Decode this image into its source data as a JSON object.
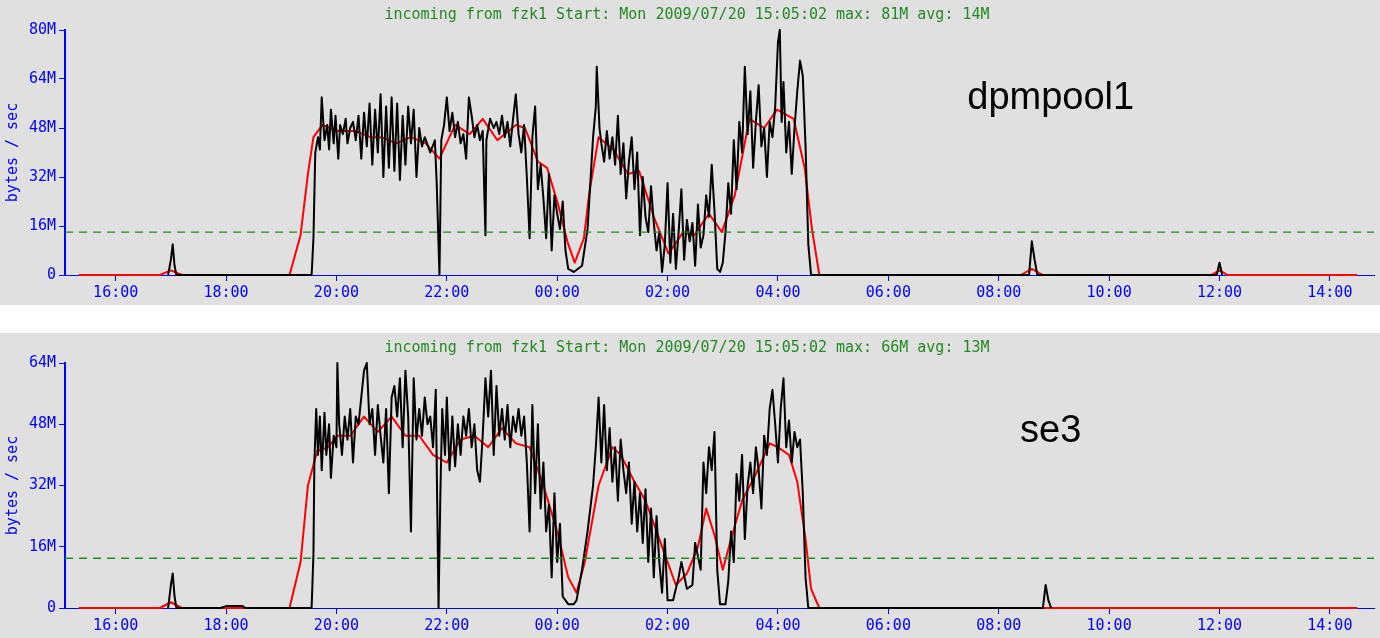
{
  "chart_data": [
    {
      "type": "line",
      "title": "incoming from fzk1 Start: Mon 2009/07/20 15:05:02 max: 81M avg: 14M",
      "ylabel": "bytes / sec",
      "annotations": [
        "dpmpool1"
      ],
      "xlim": [
        "2009-07-20T15:05",
        "2009-07-21T14:48"
      ],
      "xticks": [
        {
          "value": "2009-07-20T16:00",
          "label": "16:00"
        },
        {
          "value": "2009-07-20T18:00",
          "label": "18:00"
        },
        {
          "value": "2009-07-20T20:00",
          "label": "20:00"
        },
        {
          "value": "2009-07-20T22:00",
          "label": "22:00"
        },
        {
          "value": "2009-07-21T00:00",
          "label": "00:00"
        },
        {
          "value": "2009-07-21T02:00",
          "label": "02:00"
        },
        {
          "value": "2009-07-21T04:00",
          "label": "04:00"
        },
        {
          "value": "2009-07-21T06:00",
          "label": "06:00"
        },
        {
          "value": "2009-07-21T08:00",
          "label": "08:00"
        },
        {
          "value": "2009-07-21T10:00",
          "label": "10:00"
        },
        {
          "value": "2009-07-21T12:00",
          "label": "12:00"
        },
        {
          "value": "2009-07-21T14:00",
          "label": "14:00"
        }
      ],
      "ylim": [
        0,
        80
      ],
      "yticks": [
        0,
        {
          "value": 16,
          "label": "16M"
        },
        {
          "value": 32,
          "label": "32M"
        },
        {
          "value": 48,
          "label": "48M"
        },
        {
          "value": 64,
          "label": "64M"
        },
        {
          "value": 80,
          "label": "80M"
        }
      ],
      "grid": false,
      "legend": false,
      "marker": "none",
      "ref_lines": [
        {
          "axis": "y",
          "value": 14,
          "color": "#228b22",
          "line_style": "dashed"
        }
      ],
      "series": [
        {
          "color": "#000000",
          "x": [
            "2009-07-20T16:57",
            "2009-07-20T17:00",
            "2009-07-20T17:02",
            "2009-07-20T17:04",
            "2009-07-20T17:06",
            "2009-07-20T19:33",
            "2009-07-20T19:35",
            "2009-07-20T19:37",
            "2009-07-20T19:40",
            "2009-07-20T19:42",
            "2009-07-20T19:44",
            "2009-07-20T19:47",
            "2009-07-20T19:50",
            "2009-07-20T19:52",
            "2009-07-20T19:54",
            "2009-07-20T19:57",
            "2009-07-20T19:59",
            "2009-07-20T20:02",
            "2009-07-20T20:04",
            "2009-07-20T20:07",
            "2009-07-20T20:10",
            "2009-07-20T20:12",
            "2009-07-20T20:15",
            "2009-07-20T20:18",
            "2009-07-20T20:21",
            "2009-07-20T20:24",
            "2009-07-20T20:27",
            "2009-07-20T20:30",
            "2009-07-20T20:33",
            "2009-07-20T20:36",
            "2009-07-20T20:39",
            "2009-07-20T20:42",
            "2009-07-20T20:45",
            "2009-07-20T20:48",
            "2009-07-20T20:51",
            "2009-07-20T20:54",
            "2009-07-20T20:57",
            "2009-07-20T21:00",
            "2009-07-20T21:03",
            "2009-07-20T21:06",
            "2009-07-20T21:09",
            "2009-07-20T21:12",
            "2009-07-20T21:15",
            "2009-07-20T21:18",
            "2009-07-20T21:21",
            "2009-07-20T21:24",
            "2009-07-20T21:27",
            "2009-07-20T21:30",
            "2009-07-20T21:33",
            "2009-07-20T21:36",
            "2009-07-20T21:42",
            "2009-07-20T21:47",
            "2009-07-20T21:49",
            "2009-07-20T21:52",
            "2009-07-20T21:54",
            "2009-07-20T21:57",
            "2009-07-20T22:00",
            "2009-07-20T22:03",
            "2009-07-20T22:06",
            "2009-07-20T22:09",
            "2009-07-20T22:12",
            "2009-07-20T22:15",
            "2009-07-20T22:18",
            "2009-07-20T22:21",
            "2009-07-20T22:24",
            "2009-07-20T22:27",
            "2009-07-20T22:30",
            "2009-07-20T22:33",
            "2009-07-20T22:36",
            "2009-07-20T22:39",
            "2009-07-20T22:42",
            "2009-07-20T22:43",
            "2009-07-20T22:47",
            "2009-07-20T22:51",
            "2009-07-20T22:54",
            "2009-07-20T22:57",
            "2009-07-20T23:00",
            "2009-07-20T23:03",
            "2009-07-20T23:06",
            "2009-07-20T23:09",
            "2009-07-20T23:12",
            "2009-07-20T23:15",
            "2009-07-20T23:18",
            "2009-07-20T23:21",
            "2009-07-20T23:24",
            "2009-07-20T23:27",
            "2009-07-20T23:30",
            "2009-07-20T23:33",
            "2009-07-20T23:36",
            "2009-07-20T23:39",
            "2009-07-20T23:42",
            "2009-07-20T23:45",
            "2009-07-20T23:48",
            "2009-07-20T23:51",
            "2009-07-20T23:54",
            "2009-07-20T23:57",
            "2009-07-21T00:00",
            "2009-07-21T00:03",
            "2009-07-21T00:06",
            "2009-07-21T00:09",
            "2009-07-21T00:12",
            "2009-07-21T00:18",
            "2009-07-21T00:27",
            "2009-07-21T00:33",
            "2009-07-21T00:36",
            "2009-07-21T00:39",
            "2009-07-21T00:42",
            "2009-07-21T00:43",
            "2009-07-21T00:46",
            "2009-07-21T00:48",
            "2009-07-21T00:51",
            "2009-07-21T00:54",
            "2009-07-21T00:57",
            "2009-07-21T01:00",
            "2009-07-21T01:03",
            "2009-07-21T01:06",
            "2009-07-21T01:09",
            "2009-07-21T01:12",
            "2009-07-21T01:15",
            "2009-07-21T01:18",
            "2009-07-21T01:21",
            "2009-07-21T01:24",
            "2009-07-21T01:27",
            "2009-07-21T01:30",
            "2009-07-21T01:33",
            "2009-07-21T01:36",
            "2009-07-21T01:39",
            "2009-07-21T01:42",
            "2009-07-21T01:45",
            "2009-07-21T01:48",
            "2009-07-21T01:51",
            "2009-07-21T01:54",
            "2009-07-21T01:57",
            "2009-07-21T02:00",
            "2009-07-21T02:03",
            "2009-07-21T02:06",
            "2009-07-21T02:09",
            "2009-07-21T02:12",
            "2009-07-21T02:15",
            "2009-07-21T02:18",
            "2009-07-21T02:21",
            "2009-07-21T02:24",
            "2009-07-21T02:27",
            "2009-07-21T02:30",
            "2009-07-21T02:33",
            "2009-07-21T02:36",
            "2009-07-21T02:39",
            "2009-07-21T02:42",
            "2009-07-21T02:45",
            "2009-07-21T02:48",
            "2009-07-21T02:51",
            "2009-07-21T02:54",
            "2009-07-21T02:57",
            "2009-07-21T03:00",
            "2009-07-21T03:03",
            "2009-07-21T03:06",
            "2009-07-21T03:09",
            "2009-07-21T03:12",
            "2009-07-21T03:15",
            "2009-07-21T03:18",
            "2009-07-21T03:21",
            "2009-07-21T03:24",
            "2009-07-21T03:27",
            "2009-07-21T03:30",
            "2009-07-21T03:33",
            "2009-07-21T03:36",
            "2009-07-21T03:39",
            "2009-07-21T03:42",
            "2009-07-21T03:45",
            "2009-07-21T03:48",
            "2009-07-21T03:51",
            "2009-07-21T03:54",
            "2009-07-21T03:57",
            "2009-07-21T04:00",
            "2009-07-21T04:02",
            "2009-07-21T04:04",
            "2009-07-21T04:06",
            "2009-07-21T04:09",
            "2009-07-21T04:12",
            "2009-07-21T04:15",
            "2009-07-21T04:18",
            "2009-07-21T04:21",
            "2009-07-21T04:24",
            "2009-07-21T04:27",
            "2009-07-21T04:30",
            "2009-07-21T04:33",
            "2009-07-21T04:36",
            "2009-07-21T08:33",
            "2009-07-21T08:36",
            "2009-07-21T08:39",
            "2009-07-21T08:42",
            "2009-07-21T11:57",
            "2009-07-21T12:00",
            "2009-07-21T12:03"
          ],
          "values": [
            0,
            5,
            10,
            3,
            0,
            0,
            12,
            40,
            45,
            41,
            58,
            44,
            49,
            41,
            54,
            43,
            52,
            38,
            49,
            46,
            51,
            43,
            48,
            50,
            44,
            52,
            38,
            53,
            42,
            56,
            36,
            54,
            40,
            59,
            32,
            55,
            35,
            58,
            34,
            56,
            31,
            52,
            36,
            55,
            43,
            54,
            32,
            48,
            42,
            45,
            40,
            44,
            30,
            0,
            44,
            49,
            58,
            47,
            53,
            45,
            50,
            43,
            46,
            38,
            58,
            52,
            45,
            49,
            44,
            47,
            13,
            44,
            51,
            48,
            50,
            46,
            52,
            45,
            50,
            42,
            51,
            59,
            46,
            40,
            49,
            32,
            12,
            45,
            55,
            28,
            36,
            25,
            12,
            33,
            8,
            26,
            20,
            15,
            24,
            8,
            2,
            1,
            3,
            15,
            30,
            45,
            55,
            68,
            48,
            43,
            37,
            47,
            38,
            45,
            36,
            52,
            33,
            43,
            25,
            37,
            45,
            28,
            40,
            13,
            32,
            19,
            14,
            29,
            17,
            8,
            14,
            1,
            10,
            30,
            4,
            20,
            2,
            14,
            28,
            5,
            18,
            11,
            17,
            3,
            23,
            9,
            13,
            26,
            19,
            36,
            21,
            2,
            1,
            4,
            14,
            30,
            20,
            44,
            28,
            50,
            40,
            68,
            46,
            60,
            35,
            50,
            62,
            42,
            48,
            32,
            50,
            45,
            55,
            76,
            80,
            50,
            63,
            40,
            50,
            33,
            48,
            60,
            70,
            65,
            42,
            10,
            0,
            0,
            11,
            5,
            0,
            0,
            4,
            0
          ]
        },
        {
          "color": "#ff0000",
          "x": [
            "2009-07-20T15:20",
            "2009-07-20T16:48",
            "2009-07-20T17:00",
            "2009-07-20T17:12",
            "2009-07-20T19:09",
            "2009-07-20T19:21",
            "2009-07-20T19:29",
            "2009-07-20T19:35",
            "2009-07-20T19:45",
            "2009-07-20T20:01",
            "2009-07-20T20:21",
            "2009-07-20T20:37",
            "2009-07-20T20:49",
            "2009-07-20T21:05",
            "2009-07-20T21:21",
            "2009-07-20T21:37",
            "2009-07-20T21:52",
            "2009-07-20T22:09",
            "2009-07-20T22:25",
            "2009-07-20T22:39",
            "2009-07-20T22:55",
            "2009-07-20T23:15",
            "2009-07-20T23:25",
            "2009-07-20T23:39",
            "2009-07-20T23:49",
            "2009-07-21T00:01",
            "2009-07-21T00:11",
            "2009-07-21T00:19",
            "2009-07-21T00:29",
            "2009-07-21T00:35",
            "2009-07-21T00:45",
            "2009-07-21T01:01",
            "2009-07-21T01:17",
            "2009-07-21T01:29",
            "2009-07-21T01:45",
            "2009-07-21T02:01",
            "2009-07-21T02:17",
            "2009-07-21T02:29",
            "2009-07-21T02:45",
            "2009-07-21T02:59",
            "2009-07-21T03:13",
            "2009-07-21T03:29",
            "2009-07-21T03:45",
            "2009-07-21T03:59",
            "2009-07-21T04:17",
            "2009-07-21T04:29",
            "2009-07-21T04:37",
            "2009-07-21T04:45",
            "2009-07-21T08:24",
            "2009-07-21T08:36",
            "2009-07-21T08:48",
            "2009-07-21T11:51",
            "2009-07-21T12:00",
            "2009-07-21T12:09",
            "2009-07-21T14:30"
          ],
          "values": [
            0,
            0,
            1.5,
            0,
            0,
            13,
            33,
            45,
            49,
            47,
            47,
            45,
            45,
            43,
            45,
            43,
            38,
            49,
            46,
            51,
            44,
            49,
            48,
            37,
            35,
            23,
            11,
            4,
            12,
            27,
            45,
            41,
            33,
            34,
            19,
            7,
            14,
            13,
            20,
            14,
            26,
            51,
            48,
            54,
            51,
            35,
            15,
            0,
            0,
            2,
            0,
            0,
            1.5,
            0,
            0
          ]
        }
      ]
    },
    {
      "type": "line",
      "title": "incoming from fzk1 Start: Mon 2009/07/20 15:05:02 max: 66M avg: 13M",
      "ylabel": "bytes / sec",
      "annotations": [
        "se3"
      ],
      "xlim": [
        "2009-07-20T15:05",
        "2009-07-21T14:48"
      ],
      "xticks": [
        {
          "value": "2009-07-20T16:00",
          "label": "16:00"
        },
        {
          "value": "2009-07-20T18:00",
          "label": "18:00"
        },
        {
          "value": "2009-07-20T20:00",
          "label": "20:00"
        },
        {
          "value": "2009-07-20T22:00",
          "label": "22:00"
        },
        {
          "value": "2009-07-21T00:00",
          "label": "00:00"
        },
        {
          "value": "2009-07-21T02:00",
          "label": "02:00"
        },
        {
          "value": "2009-07-21T04:00",
          "label": "04:00"
        },
        {
          "value": "2009-07-21T06:00",
          "label": "06:00"
        },
        {
          "value": "2009-07-21T08:00",
          "label": "08:00"
        },
        {
          "value": "2009-07-21T10:00",
          "label": "10:00"
        },
        {
          "value": "2009-07-21T12:00",
          "label": "12:00"
        },
        {
          "value": "2009-07-21T14:00",
          "label": "14:00"
        }
      ],
      "ylim": [
        0,
        64
      ],
      "yticks": [
        0,
        {
          "value": 16,
          "label": "16M"
        },
        {
          "value": 32,
          "label": "32M"
        },
        {
          "value": 48,
          "label": "48M"
        },
        {
          "value": 64,
          "label": "64M"
        }
      ],
      "grid": false,
      "legend": false,
      "marker": "none",
      "ref_lines": [
        {
          "axis": "y",
          "value": 13,
          "color": "#228b22",
          "line_style": "dashed"
        }
      ],
      "series": [
        {
          "color": "#000000",
          "x": [
            "2009-07-20T16:57",
            "2009-07-20T17:00",
            "2009-07-20T17:02",
            "2009-07-20T17:04",
            "2009-07-20T17:06",
            "2009-07-20T17:54",
            "2009-07-20T18:00",
            "2009-07-20T18:18",
            "2009-07-20T18:21",
            "2009-07-20T19:33",
            "2009-07-20T19:35",
            "2009-07-20T19:36",
            "2009-07-20T19:38",
            "2009-07-20T19:40",
            "2009-07-20T19:42",
            "2009-07-20T19:44",
            "2009-07-20T19:47",
            "2009-07-20T19:49",
            "2009-07-20T19:52",
            "2009-07-20T19:54",
            "2009-07-20T19:57",
            "2009-07-20T20:00",
            "2009-07-20T20:01",
            "2009-07-20T20:03",
            "2009-07-20T20:06",
            "2009-07-20T20:09",
            "2009-07-20T20:12",
            "2009-07-20T20:15",
            "2009-07-20T20:18",
            "2009-07-20T20:21",
            "2009-07-20T20:24",
            "2009-07-20T20:27",
            "2009-07-20T20:30",
            "2009-07-20T20:33",
            "2009-07-20T20:36",
            "2009-07-20T20:39",
            "2009-07-20T20:42",
            "2009-07-20T20:45",
            "2009-07-20T20:48",
            "2009-07-20T20:51",
            "2009-07-20T20:54",
            "2009-07-20T20:57",
            "2009-07-20T21:00",
            "2009-07-20T21:03",
            "2009-07-20T21:06",
            "2009-07-20T21:09",
            "2009-07-20T21:12",
            "2009-07-20T21:15",
            "2009-07-20T21:18",
            "2009-07-20T21:21",
            "2009-07-20T21:24",
            "2009-07-20T21:27",
            "2009-07-20T21:30",
            "2009-07-20T21:33",
            "2009-07-20T21:36",
            "2009-07-20T21:39",
            "2009-07-20T21:42",
            "2009-07-20T21:45",
            "2009-07-20T21:48",
            "2009-07-20T21:51",
            "2009-07-20T21:53",
            "2009-07-20T21:55",
            "2009-07-20T21:58",
            "2009-07-20T22:00",
            "2009-07-20T22:03",
            "2009-07-20T22:06",
            "2009-07-20T22:09",
            "2009-07-20T22:12",
            "2009-07-20T22:15",
            "2009-07-20T22:18",
            "2009-07-20T22:21",
            "2009-07-20T22:24",
            "2009-07-20T22:27",
            "2009-07-20T22:30",
            "2009-07-20T22:33",
            "2009-07-20T22:36",
            "2009-07-20T22:39",
            "2009-07-20T22:42",
            "2009-07-20T22:45",
            "2009-07-20T22:48",
            "2009-07-20T22:51",
            "2009-07-20T22:54",
            "2009-07-20T22:57",
            "2009-07-20T23:00",
            "2009-07-20T23:03",
            "2009-07-20T23:06",
            "2009-07-20T23:09",
            "2009-07-20T23:12",
            "2009-07-20T23:15",
            "2009-07-20T23:18",
            "2009-07-20T23:21",
            "2009-07-20T23:24",
            "2009-07-20T23:27",
            "2009-07-20T23:30",
            "2009-07-20T23:33",
            "2009-07-20T23:36",
            "2009-07-20T23:39",
            "2009-07-20T23:42",
            "2009-07-20T23:45",
            "2009-07-20T23:48",
            "2009-07-20T23:51",
            "2009-07-20T23:54",
            "2009-07-20T23:57",
            "2009-07-21T00:00",
            "2009-07-21T00:03",
            "2009-07-21T00:06",
            "2009-07-21T00:12",
            "2009-07-21T00:18",
            "2009-07-21T00:21",
            "2009-07-21T00:27",
            "2009-07-21T00:33",
            "2009-07-21T00:39",
            "2009-07-21T00:42",
            "2009-07-21T00:45",
            "2009-07-21T00:48",
            "2009-07-21T00:51",
            "2009-07-21T00:54",
            "2009-07-21T00:57",
            "2009-07-21T01:00",
            "2009-07-21T01:03",
            "2009-07-21T01:06",
            "2009-07-21T01:09",
            "2009-07-21T01:12",
            "2009-07-21T01:15",
            "2009-07-21T01:18",
            "2009-07-21T01:21",
            "2009-07-21T01:24",
            "2009-07-21T01:27",
            "2009-07-21T01:30",
            "2009-07-21T01:33",
            "2009-07-21T01:36",
            "2009-07-21T01:39",
            "2009-07-21T01:42",
            "2009-07-21T01:45",
            "2009-07-21T01:48",
            "2009-07-21T01:51",
            "2009-07-21T01:54",
            "2009-07-21T01:57",
            "2009-07-21T02:00",
            "2009-07-21T02:06",
            "2009-07-21T02:12",
            "2009-07-21T02:15",
            "2009-07-21T02:21",
            "2009-07-21T02:27",
            "2009-07-21T02:30",
            "2009-07-21T02:36",
            "2009-07-21T02:39",
            "2009-07-21T02:42",
            "2009-07-21T02:45",
            "2009-07-21T02:48",
            "2009-07-21T02:51",
            "2009-07-21T02:54",
            "2009-07-21T02:57",
            "2009-07-21T03:03",
            "2009-07-21T03:06",
            "2009-07-21T03:09",
            "2009-07-21T03:12",
            "2009-07-21T03:15",
            "2009-07-21T03:18",
            "2009-07-21T03:21",
            "2009-07-21T03:24",
            "2009-07-21T03:27",
            "2009-07-21T03:30",
            "2009-07-21T03:33",
            "2009-07-21T03:36",
            "2009-07-21T03:39",
            "2009-07-21T03:42",
            "2009-07-21T03:45",
            "2009-07-21T03:48",
            "2009-07-21T03:51",
            "2009-07-21T03:54",
            "2009-07-21T03:57",
            "2009-07-21T04:00",
            "2009-07-21T04:03",
            "2009-07-21T04:06",
            "2009-07-21T04:09",
            "2009-07-21T04:12",
            "2009-07-21T04:15",
            "2009-07-21T04:18",
            "2009-07-21T04:21",
            "2009-07-21T04:24",
            "2009-07-21T04:27",
            "2009-07-21T04:30",
            "2009-07-21T04:33",
            "2009-07-21T08:48",
            "2009-07-21T08:51",
            "2009-07-21T08:54",
            "2009-07-21T08:57"
          ],
          "values": [
            0,
            6,
            9,
            3,
            0,
            0,
            0.5,
            0.5,
            0,
            0,
            14,
            38,
            52,
            40,
            50,
            36,
            51,
            40,
            48,
            34,
            45,
            42,
            64,
            48,
            40,
            50,
            44,
            52,
            38,
            50,
            48,
            55,
            62,
            64,
            48,
            52,
            40,
            53,
            45,
            38,
            52,
            30,
            55,
            58,
            50,
            60,
            42,
            62,
            50,
            20,
            60,
            44,
            52,
            45,
            55,
            48,
            50,
            42,
            57,
            0,
            30,
            52,
            40,
            55,
            36,
            50,
            37,
            48,
            40,
            50,
            45,
            52,
            42,
            48,
            36,
            33,
            45,
            60,
            50,
            62,
            40,
            58,
            45,
            52,
            44,
            53,
            42,
            50,
            46,
            52,
            45,
            50,
            38,
            20,
            53,
            30,
            48,
            26,
            38,
            20,
            27,
            8,
            30,
            12,
            22,
            3,
            1,
            1,
            2,
            10,
            20,
            32,
            42,
            55,
            38,
            53,
            36,
            47,
            33,
            42,
            28,
            44,
            36,
            30,
            38,
            22,
            33,
            20,
            30,
            17,
            31,
            12,
            26,
            8,
            24,
            12,
            4,
            18,
            2,
            2,
            8,
            12,
            5,
            6,
            17,
            10,
            38,
            30,
            42,
            36,
            46,
            10,
            1,
            1,
            7,
            20,
            12,
            35,
            28,
            40,
            18,
            32,
            38,
            30,
            42,
            36,
            26,
            45,
            40,
            52,
            57,
            48,
            38,
            52,
            60,
            42,
            49,
            38,
            46,
            42,
            44,
            30,
            8,
            0,
            0,
            6,
            2,
            0
          ]
        },
        {
          "color": "#ff0000",
          "x": [
            "2009-07-20T15:20",
            "2009-07-20T16:48",
            "2009-07-20T17:00",
            "2009-07-20T17:12",
            "2009-07-20T19:09",
            "2009-07-20T19:21",
            "2009-07-20T19:29",
            "2009-07-20T19:39",
            "2009-07-20T19:51",
            "2009-07-20T20:01",
            "2009-07-20T20:15",
            "2009-07-20T20:30",
            "2009-07-20T20:45",
            "2009-07-20T21:00",
            "2009-07-20T21:15",
            "2009-07-20T21:30",
            "2009-07-20T21:45",
            "2009-07-20T22:00",
            "2009-07-20T22:15",
            "2009-07-20T22:30",
            "2009-07-20T22:45",
            "2009-07-20T23:00",
            "2009-07-20T23:15",
            "2009-07-20T23:30",
            "2009-07-20T23:45",
            "2009-07-21T00:00",
            "2009-07-21T00:12",
            "2009-07-21T00:21",
            "2009-07-21T00:30",
            "2009-07-21T00:45",
            "2009-07-21T01:00",
            "2009-07-21T01:09",
            "2009-07-21T01:24",
            "2009-07-21T01:36",
            "2009-07-21T01:48",
            "2009-07-21T02:00",
            "2009-07-21T02:09",
            "2009-07-21T02:21",
            "2009-07-21T02:33",
            "2009-07-21T02:42",
            "2009-07-21T02:51",
            "2009-07-21T03:00",
            "2009-07-21T03:09",
            "2009-07-21T03:21",
            "2009-07-21T03:36",
            "2009-07-21T03:51",
            "2009-07-21T04:00",
            "2009-07-21T04:12",
            "2009-07-21T04:21",
            "2009-07-21T04:30",
            "2009-07-21T04:36",
            "2009-07-21T04:45",
            "2009-07-21T14:30"
          ],
          "values": [
            0,
            0,
            1.5,
            0,
            0,
            12,
            32,
            41,
            42,
            45,
            45,
            50,
            46,
            50,
            45,
            45,
            40,
            38,
            44,
            45,
            42,
            47,
            43,
            42,
            32,
            20,
            8,
            4,
            12,
            32,
            42,
            40,
            33,
            28,
            20,
            12,
            6,
            9,
            16,
            26,
            19,
            10,
            18,
            28,
            35,
            43,
            42,
            40,
            33,
            18,
            5,
            0,
            0
          ]
        }
      ]
    }
  ]
}
